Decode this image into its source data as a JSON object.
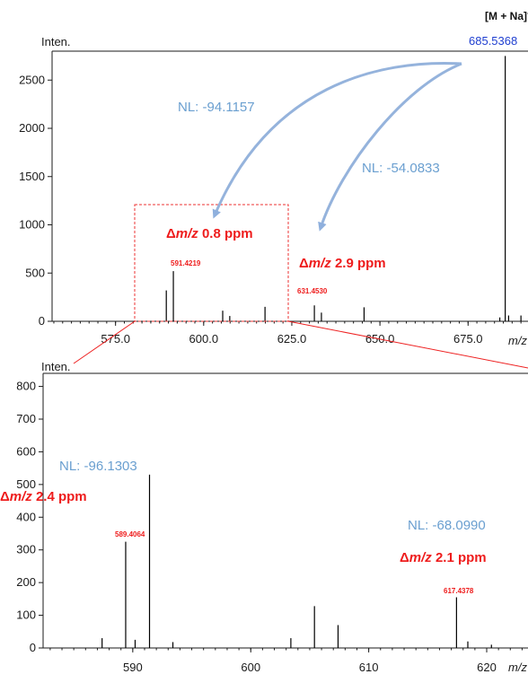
{
  "chart_data": [
    {
      "type": "bar",
      "ylabel": "Inten.",
      "xlabel": "m/z",
      "xlim": [
        557,
        692
      ],
      "ylim": [
        0,
        2800
      ],
      "yticks": [
        "0",
        "500",
        "1000",
        "1500",
        "2000",
        "2500"
      ],
      "xticks": [
        "575.0",
        "600.0",
        "625.0",
        "650.0",
        "675.0"
      ],
      "peaks": [
        {
          "x": 589.4,
          "y": 320
        },
        {
          "x": 591.4,
          "y": 520
        },
        {
          "x": 605.4,
          "y": 110
        },
        {
          "x": 607.4,
          "y": 55
        },
        {
          "x": 617.4,
          "y": 150
        },
        {
          "x": 631.4,
          "y": 165
        },
        {
          "x": 633.4,
          "y": 90
        },
        {
          "x": 645.5,
          "y": 145
        },
        {
          "x": 684.0,
          "y": 40
        },
        {
          "x": 685.54,
          "y": 2750
        },
        {
          "x": 686.5,
          "y": 60
        },
        {
          "x": 690.0,
          "y": 60
        }
      ],
      "labels": {
        "adduct": "[M + Na]+",
        "main_mz": "685.5368",
        "nl_1": "NL: -94.1157",
        "nl_2": "NL: -54.0833",
        "dmz_1_prefix": "Δ",
        "dmz_1_italic": "m/z",
        "dmz_1_suffix": " 0.8 ppm",
        "dmz_2_prefix": "Δ",
        "dmz_2_italic": "m/z",
        "dmz_2_suffix": " 2.9 ppm",
        "peak_1": "591.4219",
        "peak_2": "631.4530"
      },
      "zoom_box": [
        575,
        623
      ]
    },
    {
      "type": "bar",
      "ylabel": "Inten.",
      "xlabel": "m/z",
      "xlim": [
        582.4,
        623.5
      ],
      "ylim": [
        0,
        840
      ],
      "yticks": [
        "0",
        "100",
        "200",
        "300",
        "400",
        "500",
        "600",
        "700",
        "800"
      ],
      "xticks": [
        "590",
        "600",
        "610",
        "620"
      ],
      "peaks": [
        {
          "x": 587.4,
          "y": 30
        },
        {
          "x": 589.4,
          "y": 325
        },
        {
          "x": 590.2,
          "y": 25
        },
        {
          "x": 591.42,
          "y": 530
        },
        {
          "x": 593.4,
          "y": 18
        },
        {
          "x": 603.4,
          "y": 30
        },
        {
          "x": 605.4,
          "y": 128
        },
        {
          "x": 607.4,
          "y": 70
        },
        {
          "x": 617.44,
          "y": 155
        },
        {
          "x": 618.4,
          "y": 20
        },
        {
          "x": 620.4,
          "y": 10
        }
      ],
      "labels": {
        "nl_1": "NL: -96.1303",
        "nl_2": "NL: -68.0990",
        "dmz_1_prefix": "Δ",
        "dmz_1_italic": "m/z",
        "dmz_1_suffix": " 2.4 ppm",
        "dmz_2_prefix": "Δ",
        "dmz_2_italic": "m/z",
        "dmz_2_suffix": " 2.1 ppm",
        "peak_1": "589.4064",
        "peak_2": "617.4378"
      }
    }
  ],
  "colors": {
    "annotation_red": "#ee1c1c",
    "nl_blue": "#6a9fd0",
    "mz_blue": "#1f3fd0",
    "arrow": "#95b3dc"
  }
}
